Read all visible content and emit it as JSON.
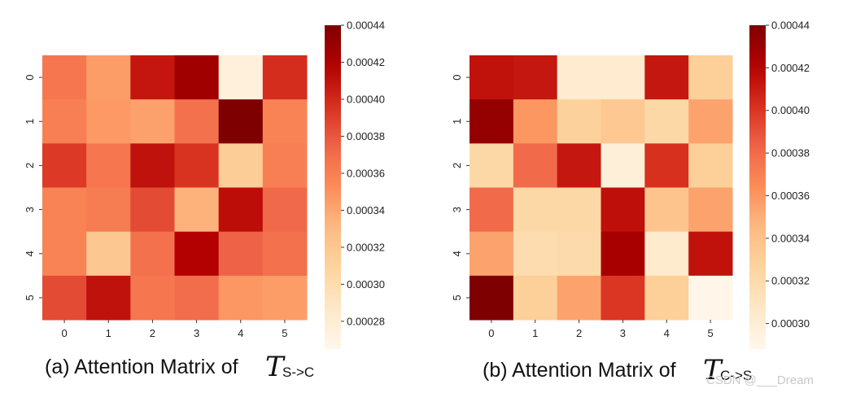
{
  "chart_data": [
    {
      "type": "heatmap",
      "caption": "(a) Attention Matrix of",
      "caption_symbol": "T",
      "caption_subscript": "S->C",
      "x_ticks": [
        "0",
        "1",
        "2",
        "3",
        "4",
        "5"
      ],
      "y_ticks": [
        "0",
        "1",
        "2",
        "3",
        "4",
        "5"
      ],
      "values": [
        [
          0.000365,
          0.000345,
          0.000408,
          0.000426,
          0.000275,
          0.000398
        ],
        [
          0.00036,
          0.000347,
          0.000343,
          0.000368,
          0.000442,
          0.000358
        ],
        [
          0.000392,
          0.000365,
          0.00041,
          0.000395,
          0.000315,
          0.00036
        ],
        [
          0.000358,
          0.000362,
          0.000385,
          0.000335,
          0.000412,
          0.000372
        ],
        [
          0.000358,
          0.00032,
          0.000368,
          0.000418,
          0.000375,
          0.000368
        ],
        [
          0.000385,
          0.00041,
          0.000365,
          0.00037,
          0.000348,
          0.000345
        ]
      ],
      "colorbar": {
        "min": 0.000265,
        "max": 0.00044,
        "ticks": [
          "0.00028",
          "0.00030",
          "0.00032",
          "0.00034",
          "0.00036",
          "0.00038",
          "0.00040",
          "0.00042",
          "0.00044"
        ]
      }
    },
    {
      "type": "heatmap",
      "caption": "(b) Attention Matrix of",
      "caption_symbol": "T",
      "caption_subscript": "C->S",
      "x_ticks": [
        "0",
        "1",
        "2",
        "3",
        "4",
        "5"
      ],
      "y_ticks": [
        "0",
        "1",
        "2",
        "3",
        "4",
        "5"
      ],
      "values": [
        [
          0.000414,
          0.000412,
          0.000303,
          0.000303,
          0.000412,
          0.00033
        ],
        [
          0.000432,
          0.00036,
          0.000328,
          0.000335,
          0.000322,
          0.000355
        ],
        [
          0.000322,
          0.00038,
          0.000412,
          0.000298,
          0.000402,
          0.00033
        ],
        [
          0.00038,
          0.000322,
          0.000322,
          0.000415,
          0.000338,
          0.000355
        ],
        [
          0.000355,
          0.000318,
          0.00032,
          0.000425,
          0.000305,
          0.000414
        ],
        [
          0.00044,
          0.00033,
          0.000355,
          0.0004,
          0.00033,
          0.00029
        ]
      ],
      "colorbar": {
        "min": 0.000288,
        "max": 0.00044,
        "ticks": [
          "0.00030",
          "0.00032",
          "0.00034",
          "0.00036",
          "0.00038",
          "0.00040",
          "0.00042",
          "0.00044"
        ]
      }
    }
  ],
  "watermark": "CSDN @___Dream"
}
